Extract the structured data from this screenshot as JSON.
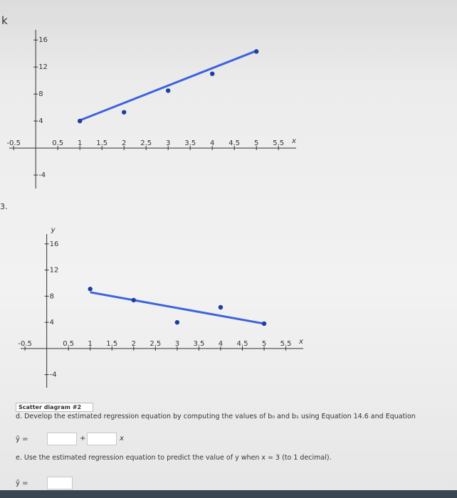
{
  "corner_mark": "k",
  "item_number": "3.",
  "chart_data": [
    {
      "type": "scatter",
      "x": [
        1,
        2,
        3,
        4,
        5
      ],
      "values": [
        4.0,
        5.3,
        8.5,
        11,
        14.3
      ],
      "color": "#1d3f9e",
      "line_color": "#3d63dd",
      "fit_line": {
        "x": [
          1,
          5
        ],
        "values": [
          4.1,
          14.4
        ]
      },
      "x_label": "x",
      "xlim": [
        -0.6,
        5.9
      ],
      "ylim": [
        -6,
        17.5
      ],
      "xticks": [
        -0.5,
        0.5,
        1,
        1.5,
        2,
        2.5,
        3,
        3.5,
        4,
        4.5,
        5,
        5.5
      ],
      "yticks": [
        -4,
        4,
        8,
        12,
        16
      ]
    },
    {
      "type": "scatter",
      "x": [
        1,
        2,
        3,
        4,
        5
      ],
      "values": [
        9.1,
        7.4,
        4.0,
        6.3,
        3.8
      ],
      "color": "#1d3f9e",
      "line_color": "#3d63dd",
      "fit_line": {
        "x": [
          1,
          5
        ],
        "values": [
          8.6,
          3.8
        ]
      },
      "x_label": "x",
      "y_label": "y",
      "xlim": [
        -0.6,
        5.9
      ],
      "ylim": [
        -6,
        17.5
      ],
      "xticks": [
        -0.5,
        0.5,
        1,
        1.5,
        2,
        2.5,
        3,
        3.5,
        4,
        4.5,
        5,
        5.5
      ],
      "yticks": [
        -4,
        4,
        8,
        12,
        16
      ]
    }
  ],
  "dropdown": "Scatter diagram #2",
  "question_d": "d. Develop the estimated regression equation by computing the values of b₀ and b₁ using Equation 14.6 and Equation",
  "yhat_label_d": "ŷ =",
  "plus": "+",
  "x_var": "x",
  "question_e": "e. Use the estimated regression equation to predict the value of y when x = 3 (to 1 decimal).",
  "yhat_label_e": "ŷ ="
}
